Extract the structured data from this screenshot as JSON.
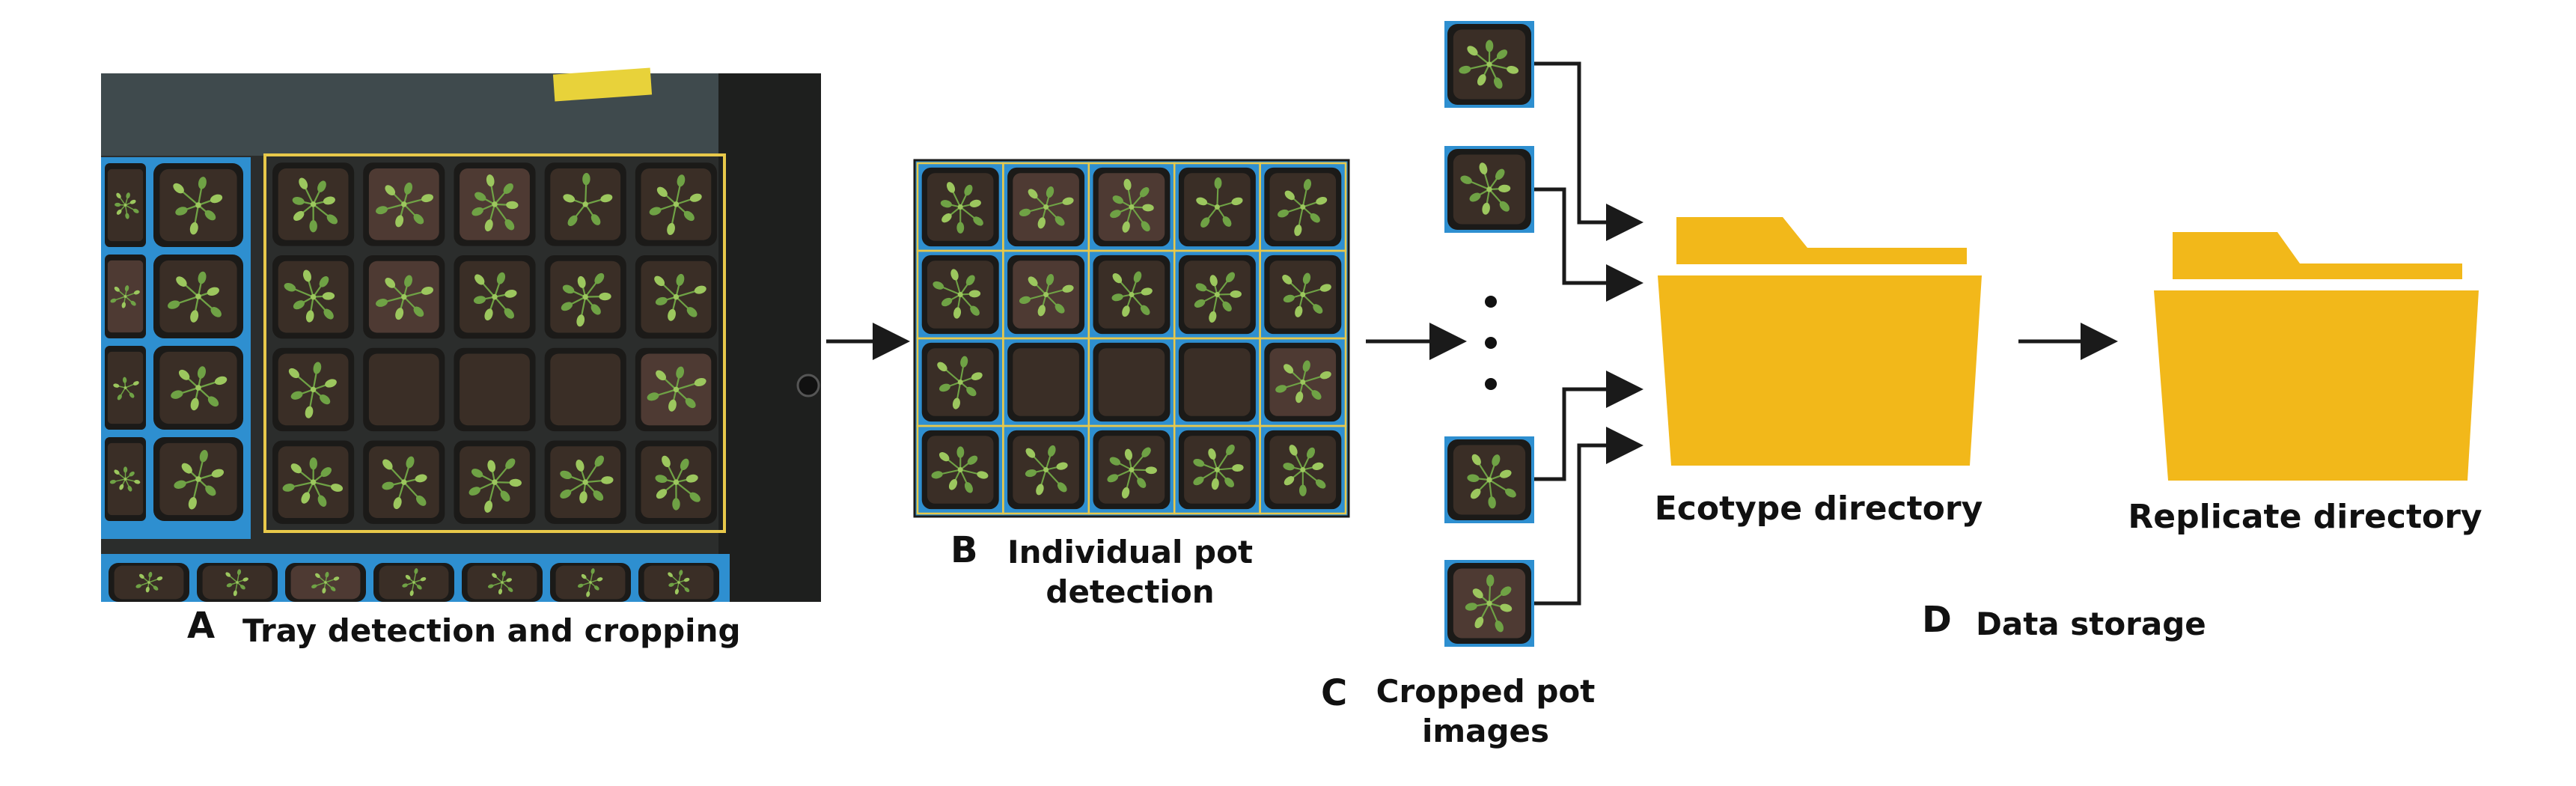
{
  "panels": {
    "a": {
      "letter": "A",
      "caption": "Tray detection and cropping"
    },
    "b": {
      "letter": "B",
      "caption_line1": "Individual pot",
      "caption_line2": "detection"
    },
    "c": {
      "letter": "C",
      "caption_line1": "Cropped pot",
      "caption_line2": "images"
    },
    "d": {
      "letter": "D",
      "caption": "Data storage",
      "folder1_label": "Ecotype directory",
      "folder2_label": "Replicate directory"
    }
  },
  "colors": {
    "folder": "#F2B81A",
    "tray_blue": "#2E8FD0",
    "detection_box": "#E8C84A",
    "soil": "#3A2E26",
    "soil_red": "#4E3A33",
    "leaf": "#6FA245",
    "leaf_light": "#9CC75E",
    "arrow": "#1A1A1A"
  },
  "grid": {
    "rows": 4,
    "cols": 5
  },
  "icons": [
    "arrow-icon",
    "folder-icon",
    "ellipsis-icon"
  ]
}
